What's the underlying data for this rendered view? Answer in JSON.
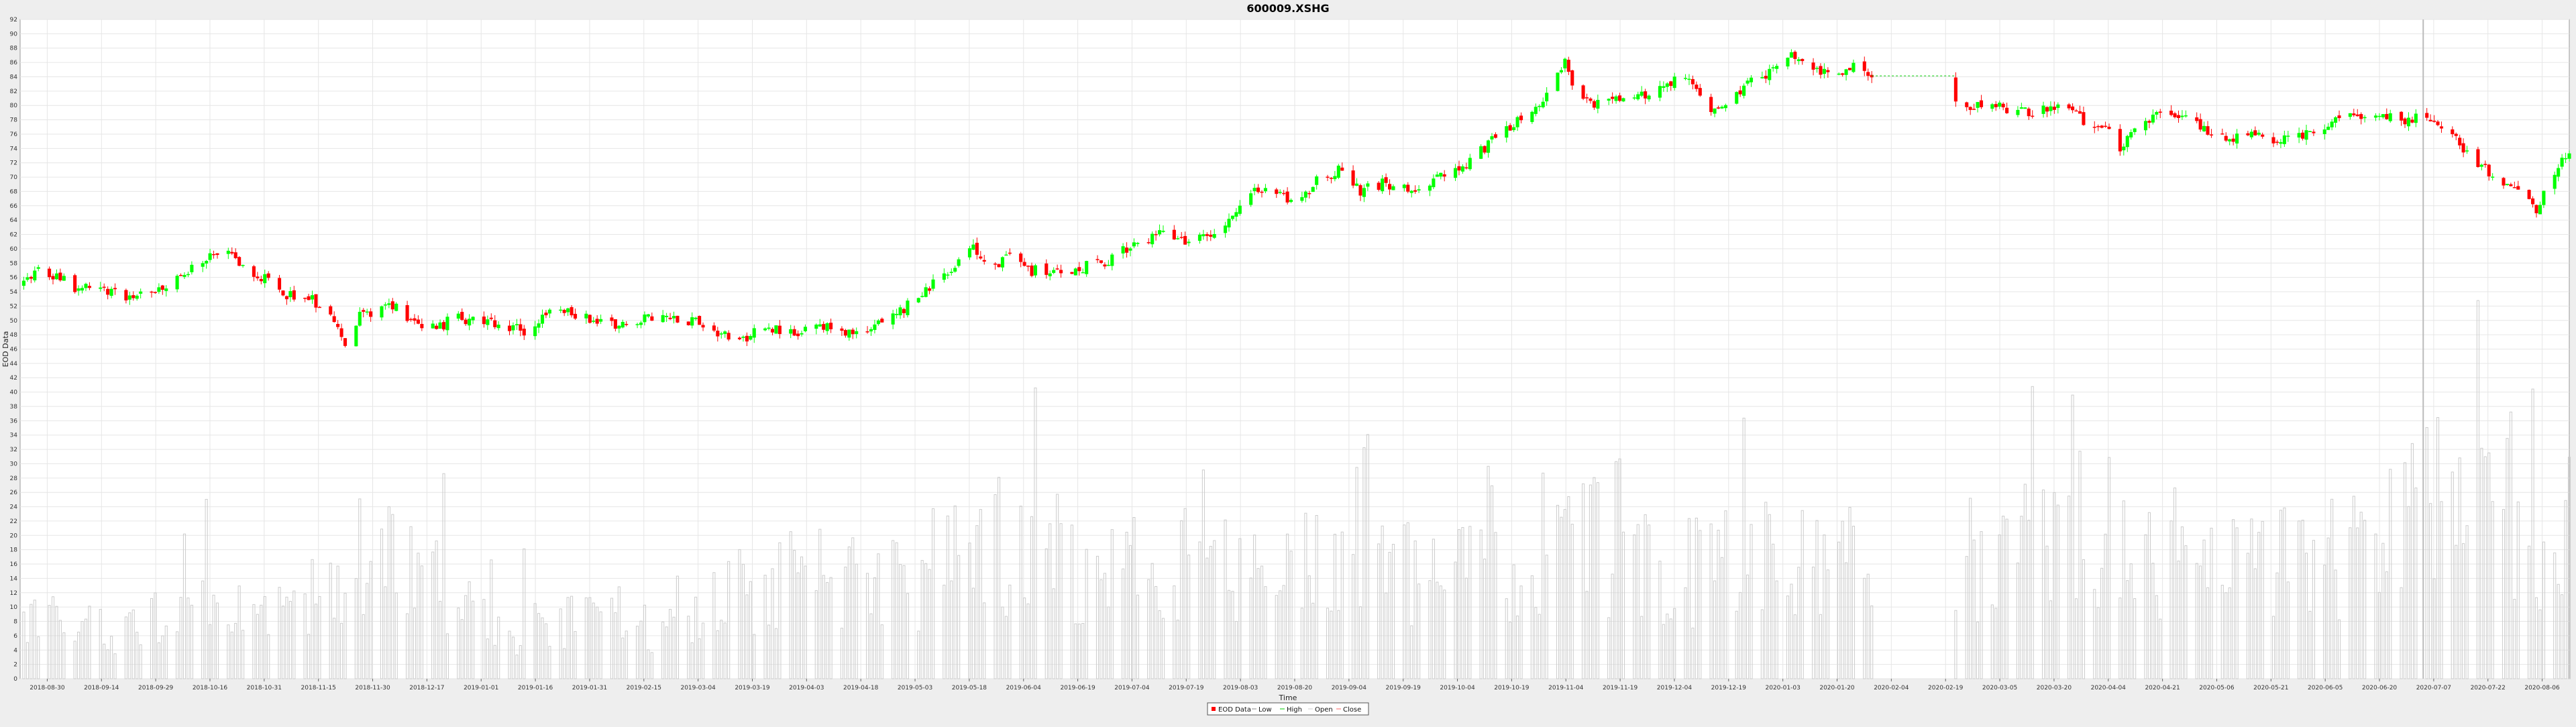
{
  "window": {
    "title": "600009.XSHG"
  },
  "chart_data": {
    "type": "candlestick",
    "title": "600009.XSHG",
    "xlabel": "Time",
    "ylabel": "EOD Data",
    "ylim": [
      0,
      92
    ],
    "y_ticks": [
      0,
      2,
      4,
      6,
      8,
      10,
      12,
      14,
      16,
      18,
      20,
      22,
      24,
      26,
      28,
      30,
      32,
      34,
      36,
      38,
      40,
      42,
      44,
      46,
      48,
      50,
      52,
      54,
      56,
      58,
      60,
      62,
      64,
      66,
      68,
      70,
      72,
      74,
      76,
      78,
      80,
      82,
      84,
      86,
      88,
      90,
      92
    ],
    "x_range": [
      "2018-09-16",
      "2020-08-14"
    ],
    "x_ticks": [
      "2018-08-30",
      "2018-09-14",
      "2018-09-29",
      "2018-10-16",
      "2018-10-31",
      "2018-11-15",
      "2018-11-30",
      "2018-12-17",
      "2019-01-01",
      "2019-01-16",
      "2019-01-31",
      "2019-02-15",
      "2019-03-04",
      "2019-03-19",
      "2019-04-03",
      "2019-04-18",
      "2019-05-03",
      "2019-05-18",
      "2019-06-04",
      "2019-06-19",
      "2019-07-04",
      "2019-07-19",
      "2019-08-03",
      "2019-08-20",
      "2019-09-04",
      "2019-09-19",
      "2019-10-04",
      "2019-10-19",
      "2019-11-04",
      "2019-11-19",
      "2019-12-04",
      "2019-12-19",
      "2020-01-03",
      "2020-01-20",
      "2020-02-04",
      "2020-02-19",
      "2020-03-05",
      "2020-03-20",
      "2020-04-04",
      "2020-04-21",
      "2020-05-06",
      "2020-05-21",
      "2020-06-05",
      "2020-06-20",
      "2020-07-07",
      "2020-07-22",
      "2020-08-06"
    ],
    "price_anchors": [
      [
        "2018-09-16",
        54
      ],
      [
        "2018-09-20",
        57
      ],
      [
        "2018-09-26",
        56
      ],
      [
        "2018-10-02",
        54.5
      ],
      [
        "2018-10-10",
        54
      ],
      [
        "2018-10-16",
        53.5
      ],
      [
        "2018-10-23",
        54
      ],
      [
        "2018-10-30",
        56
      ],
      [
        "2018-11-06",
        58.5
      ],
      [
        "2018-11-12",
        59
      ],
      [
        "2018-11-20",
        56.5
      ],
      [
        "2018-11-26",
        54
      ],
      [
        "2018-12-04",
        53
      ],
      [
        "2018-12-10",
        51.5
      ],
      [
        "2018-12-14",
        46
      ],
      [
        "2018-12-18",
        50.5
      ],
      [
        "2018-12-26",
        52.5
      ],
      [
        "2019-01-02",
        50
      ],
      [
        "2019-01-08",
        49
      ],
      [
        "2019-01-14",
        50.5
      ],
      [
        "2019-01-22",
        49.5
      ],
      [
        "2019-02-01",
        48.5
      ],
      [
        "2019-02-10",
        51.5
      ],
      [
        "2019-02-18",
        50.5
      ],
      [
        "2019-02-24",
        49.5
      ],
      [
        "2019-03-04",
        50
      ],
      [
        "2019-03-12",
        50.5
      ],
      [
        "2019-03-20",
        50
      ],
      [
        "2019-03-26",
        48.5
      ],
      [
        "2019-04-02",
        47.5
      ],
      [
        "2019-04-08",
        49.5
      ],
      [
        "2019-04-14",
        48
      ],
      [
        "2019-04-22",
        49
      ],
      [
        "2019-05-02",
        48.5
      ],
      [
        "2019-05-12",
        50
      ],
      [
        "2019-05-18",
        52.5
      ],
      [
        "2019-05-24",
        55
      ],
      [
        "2019-05-30",
        58
      ],
      [
        "2019-06-04",
        60
      ],
      [
        "2019-06-09",
        57.5
      ],
      [
        "2019-06-14",
        59
      ],
      [
        "2019-06-20",
        57
      ],
      [
        "2019-06-28",
        56.5
      ],
      [
        "2019-07-04",
        57.5
      ],
      [
        "2019-07-10",
        58
      ],
      [
        "2019-07-16",
        60
      ],
      [
        "2019-07-22",
        61.5
      ],
      [
        "2019-07-26",
        63
      ],
      [
        "2019-08-01",
        61
      ],
      [
        "2019-08-08",
        62
      ],
      [
        "2019-08-14",
        65
      ],
      [
        "2019-08-20",
        68
      ],
      [
        "2019-08-26",
        68
      ],
      [
        "2019-09-01",
        66.5
      ],
      [
        "2019-09-06",
        69.5
      ],
      [
        "2019-09-12",
        71
      ],
      [
        "2019-09-18",
        68
      ],
      [
        "2019-09-24",
        69
      ],
      [
        "2019-10-02",
        68.5
      ],
      [
        "2019-10-10",
        70
      ],
      [
        "2019-10-16",
        71.5
      ],
      [
        "2019-10-22",
        74
      ],
      [
        "2019-10-28",
        77
      ],
      [
        "2019-11-03",
        78.5
      ],
      [
        "2019-11-09",
        82
      ],
      [
        "2019-11-13",
        86
      ],
      [
        "2019-11-17",
        81
      ],
      [
        "2019-11-23",
        80
      ],
      [
        "2019-11-29",
        81
      ],
      [
        "2019-12-05",
        81.5
      ],
      [
        "2019-12-11",
        83
      ],
      [
        "2019-12-15",
        84.5
      ],
      [
        "2019-12-19",
        82
      ],
      [
        "2019-12-23",
        79
      ],
      [
        "2019-12-29",
        81.5
      ],
      [
        "2020-01-05",
        84
      ],
      [
        "2020-01-11",
        85.5
      ],
      [
        "2020-01-15",
        87
      ],
      [
        "2020-01-19",
        85
      ],
      [
        "2020-01-25",
        84.5
      ],
      [
        "2020-02-02",
        86
      ],
      [
        "2020-02-06",
        83.5
      ],
      [
        "2020-02-12",
        83
      ],
      [
        "2020-02-18",
        82
      ],
      [
        "2020-02-24",
        80.5
      ],
      [
        "2020-03-01",
        79.5
      ],
      [
        "2020-03-08",
        80
      ],
      [
        "2020-03-15",
        79.5
      ],
      [
        "2020-03-21",
        79
      ],
      [
        "2020-03-29",
        80
      ],
      [
        "2020-04-03",
        78
      ],
      [
        "2020-04-09",
        77
      ],
      [
        "2020-04-13",
        74
      ],
      [
        "2020-04-17",
        76
      ],
      [
        "2020-04-21",
        78
      ],
      [
        "2020-04-27",
        79
      ],
      [
        "2020-05-03",
        77.5
      ],
      [
        "2020-05-09",
        76
      ],
      [
        "2020-05-15",
        75.5
      ],
      [
        "2020-05-21",
        76
      ],
      [
        "2020-05-27",
        75
      ],
      [
        "2020-06-02",
        76
      ],
      [
        "2020-06-08",
        77
      ],
      [
        "2020-06-14",
        78.5
      ],
      [
        "2020-06-20",
        79
      ],
      [
        "2020-06-26",
        78.5
      ],
      [
        "2020-07-02",
        78
      ],
      [
        "2020-07-06",
        78.5
      ],
      [
        "2020-07-10",
        76
      ],
      [
        "2020-07-14",
        75
      ],
      [
        "2020-07-18",
        73
      ],
      [
        "2020-07-22",
        71
      ],
      [
        "2020-07-26",
        69
      ],
      [
        "2020-08-01",
        68.5
      ],
      [
        "2020-08-05",
        65
      ],
      [
        "2020-08-09",
        70
      ],
      [
        "2020-08-14",
        73.5
      ]
    ],
    "volume_anchors": [
      [
        "2018-09-16",
        8
      ],
      [
        "2018-10-05",
        7
      ],
      [
        "2018-11-10",
        10
      ],
      [
        "2018-11-30",
        8
      ],
      [
        "2018-12-15",
        18
      ],
      [
        "2019-01-05",
        14
      ],
      [
        "2019-01-25",
        7
      ],
      [
        "2019-02-20",
        8
      ],
      [
        "2019-03-10",
        7
      ],
      [
        "2019-03-30",
        12
      ],
      [
        "2019-04-20",
        14
      ],
      [
        "2019-05-15",
        13
      ],
      [
        "2019-06-05",
        20
      ],
      [
        "2019-06-25",
        16
      ],
      [
        "2019-07-15",
        15
      ],
      [
        "2019-08-05",
        14
      ],
      [
        "2019-08-25",
        15
      ],
      [
        "2019-09-15",
        16
      ],
      [
        "2019-10-05",
        14
      ],
      [
        "2019-10-25",
        14
      ],
      [
        "2019-11-13",
        22
      ],
      [
        "2019-12-05",
        15
      ],
      [
        "2019-12-25",
        16
      ],
      [
        "2020-01-10",
        18
      ],
      [
        "2020-02-01",
        17
      ],
      [
        "2020-02-20",
        20
      ],
      [
        "2020-03-10",
        15
      ],
      [
        "2020-03-25",
        20
      ],
      [
        "2020-04-10",
        22
      ],
      [
        "2020-04-28",
        14
      ],
      [
        "2020-05-15",
        15
      ],
      [
        "2020-06-05",
        16
      ],
      [
        "2020-06-20",
        18
      ],
      [
        "2020-07-08",
        24
      ],
      [
        "2020-07-25",
        28
      ],
      [
        "2020-08-05",
        18
      ],
      [
        "2020-08-14",
        22
      ]
    ],
    "gap": {
      "start": "2020-02-05",
      "end": "2020-02-28",
      "type": "dashed-line"
    },
    "legend": {
      "entries": [
        "EOD Data",
        "Low",
        "High",
        "Open",
        "Close"
      ],
      "placement": "bottom-center"
    },
    "grid": true,
    "highlight_line": {
      "date": "2020-07-05"
    },
    "colors": {
      "up": "#00ff00",
      "down": "#ff0000",
      "volume": "#cccccc",
      "connector": "#00cc00",
      "highlight": "#bbbbbb"
    }
  }
}
